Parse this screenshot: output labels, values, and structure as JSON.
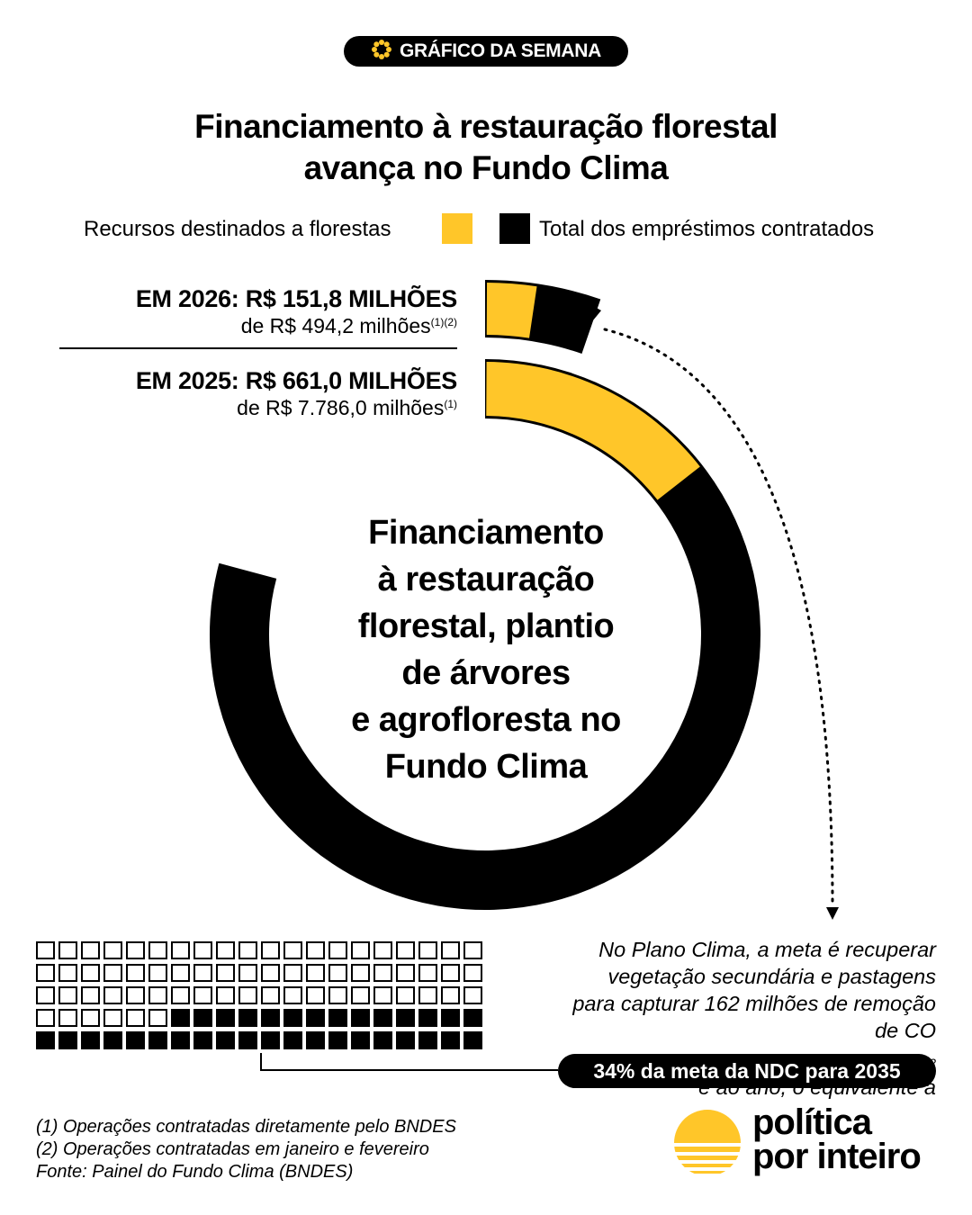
{
  "badge": {
    "label": "GRÁFICO DA SEMANA",
    "icon": "sunflower-icon"
  },
  "title": {
    "line1": "Financiamento à restauração florestal",
    "line2": "avança no Fundo Clima"
  },
  "legend": {
    "florestas_label": "Recursos destinados a florestas",
    "total_label": "Total dos empréstimos contratados"
  },
  "colors": {
    "florestas": "#FFC629",
    "total": "#000000",
    "background": "#FFFFFF"
  },
  "years": {
    "y2026": {
      "headline": "EM 2026: R$ 151,8 MILHÕES",
      "sub": "de R$ 494,2 milhões",
      "note_refs": "(1)(2)"
    },
    "y2025": {
      "headline": "EM 2025: R$ 661,0 MILHÕES",
      "sub": "de R$ 7.786,0 milhões",
      "note_refs": "(1)"
    }
  },
  "center_text": [
    "Financiamento",
    "à restauração",
    "florestal, plantio",
    "de árvores",
    "e agrofloresta no",
    "Fundo Clima"
  ],
  "chart_data": {
    "type": "radial-bar",
    "categories": [
      "2026",
      "2025"
    ],
    "series": [
      {
        "name": "Recursos destinados a florestas",
        "values": [
          151.8,
          661.0
        ]
      },
      {
        "name": "Total dos empréstimos contratados",
        "values": [
          494.2,
          7786.0
        ]
      }
    ],
    "unit": "R$ milhões",
    "waffle": {
      "total_cells": 100,
      "filled_cells": 34,
      "filled_percent": 34
    }
  },
  "note": {
    "line1": "No Plano Clima, a meta é recuperar",
    "line2": "vegetação secundária e pastagens",
    "line3": "para capturar 162 milhões de remoção",
    "line4_a": "de CO",
    "line4_sub": "2",
    "line4_b": "e ao ano, o equivalente a"
  },
  "ndc_badge": "34% da meta da NDC para 2035",
  "footnotes": [
    "(1) Operações contratadas diretamente pelo BNDES",
    "(2) Operações contratadas em janeiro e fevereiro",
    "Fonte: Painel do Fundo Clima (BNDES)"
  ],
  "brand": {
    "line1": "política",
    "line2": "por inteiro"
  }
}
